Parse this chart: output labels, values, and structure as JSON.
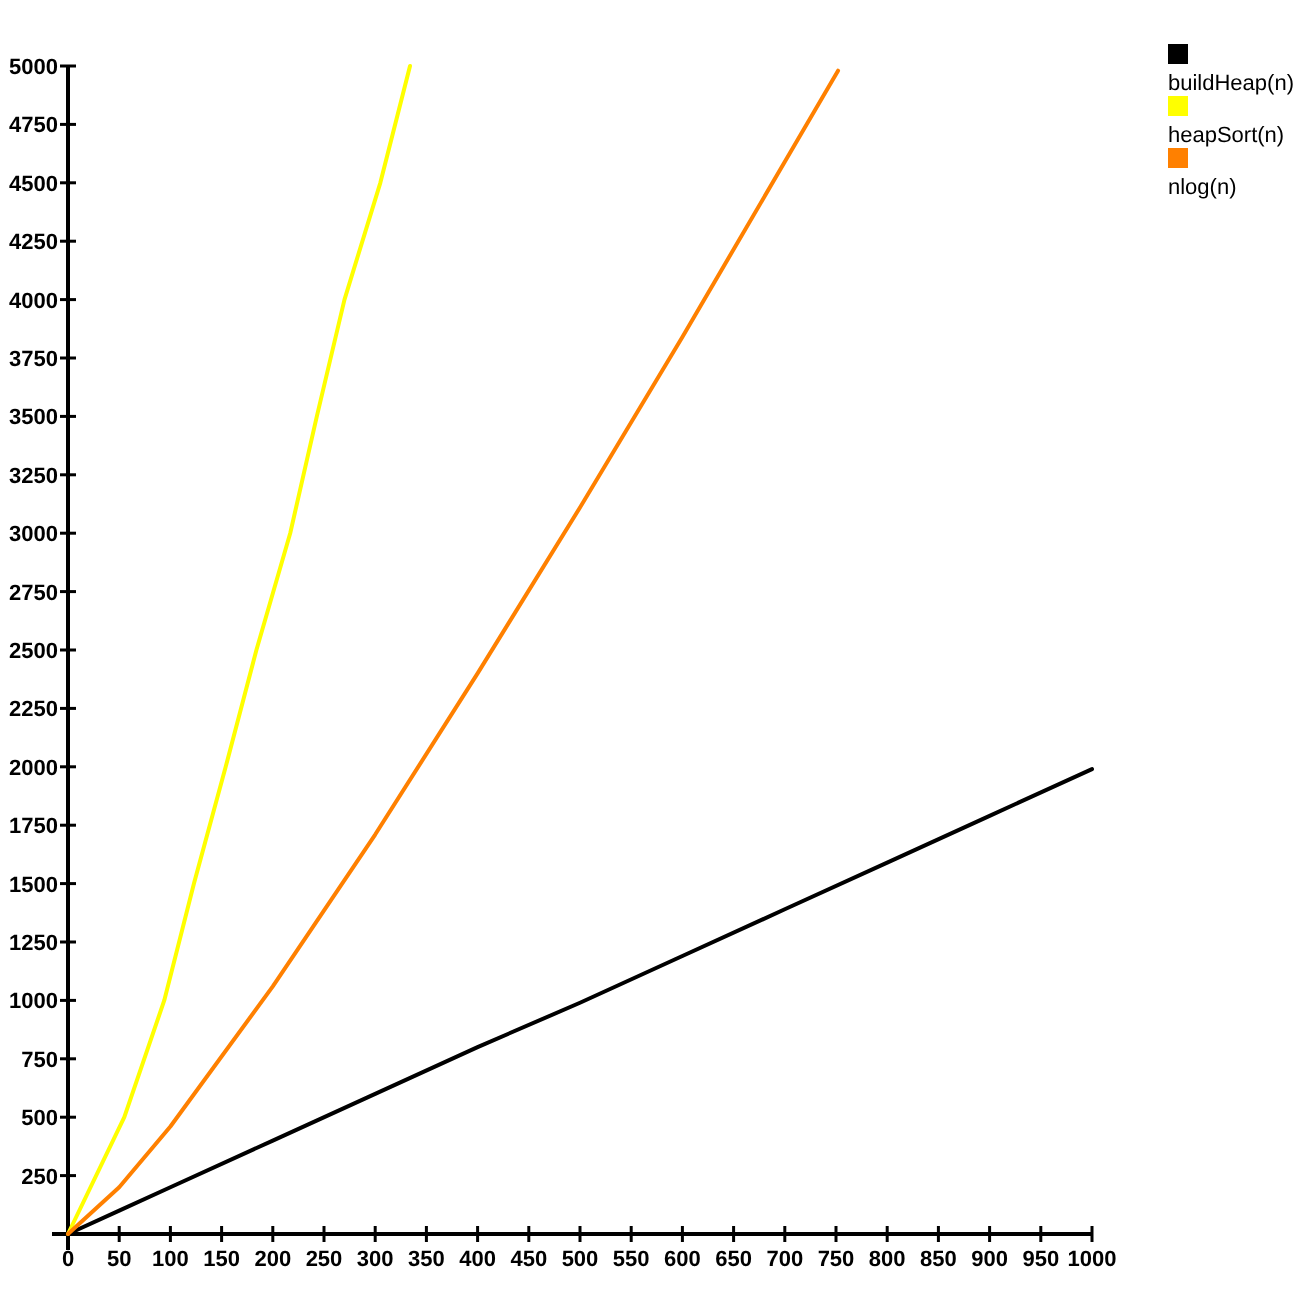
{
  "chart_data": {
    "type": "line",
    "x": [
      0,
      50,
      100,
      200,
      300,
      400,
      500,
      600,
      700,
      800,
      900,
      1000
    ],
    "series": [
      {
        "name": "buildHeap(n)",
        "color": "#000000",
        "values": [
          0,
          100,
          200,
          400,
          600,
          800,
          990,
          1190,
          1390,
          1590,
          1790,
          1990
        ]
      },
      {
        "name": "heapSort(n)",
        "color": "#ffff00",
        "x": [
          0,
          55,
          94,
          123,
          154,
          184,
          217,
          243,
          270,
          305,
          334
        ],
        "values": [
          0,
          500,
          1000,
          1500,
          2000,
          2500,
          3000,
          3500,
          4000,
          4500,
          5000
        ]
      },
      {
        "name": "nlog(n)",
        "color": "#ff8000",
        "x": [
          0,
          50,
          100,
          200,
          300,
          400,
          500,
          600,
          700,
          752
        ],
        "values": [
          0,
          200,
          460,
          1060,
          1710,
          2400,
          3110,
          3840,
          4590,
          4980
        ]
      }
    ],
    "xlim": [
      0,
      1000
    ],
    "xticks": [
      0,
      50,
      100,
      150,
      200,
      250,
      300,
      350,
      400,
      450,
      500,
      550,
      600,
      650,
      700,
      750,
      800,
      850,
      900,
      950,
      1000
    ],
    "ylim": [
      0,
      5000
    ],
    "yticks": [
      250,
      500,
      750,
      1000,
      1250,
      1500,
      1750,
      2000,
      2250,
      2500,
      2750,
      3000,
      3250,
      3500,
      3750,
      4000,
      4250,
      4500,
      4750,
      5000
    ],
    "grid": false,
    "legend": "top right",
    "marker": "none",
    "line_style": "solid"
  }
}
